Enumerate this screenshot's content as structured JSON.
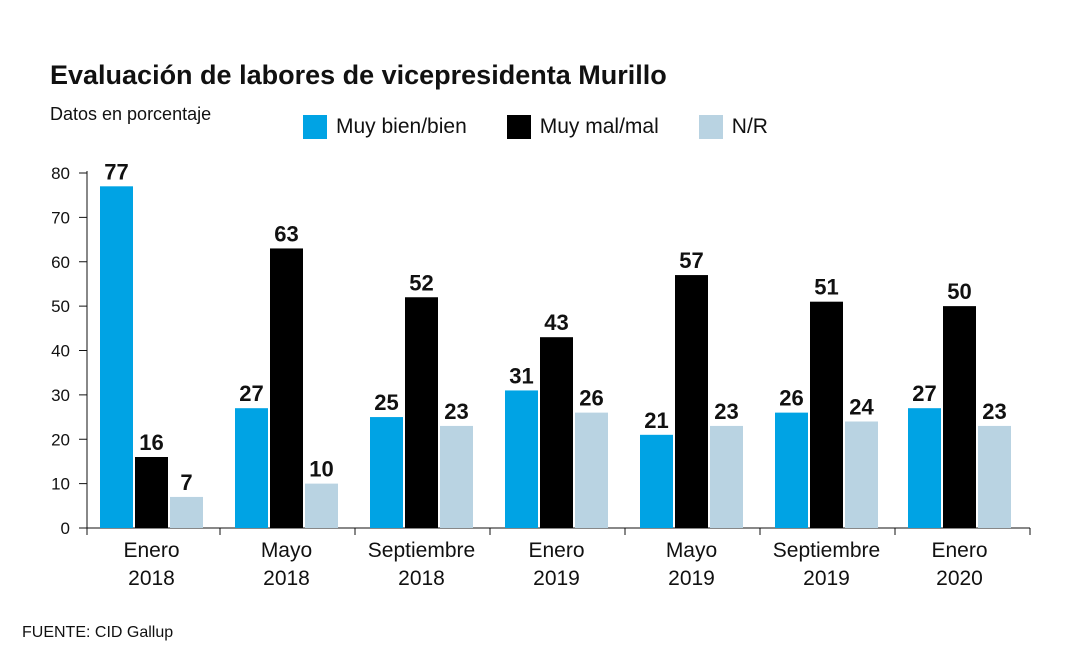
{
  "title": "Evaluación de labores de vicepresidenta Murillo",
  "subtitle": "Datos en porcentaje",
  "source": "FUENTE: CID Gallup",
  "colors": {
    "muy_bien": "#00a3e4",
    "muy_mal": "#000000",
    "nr": "#b9d3e2"
  },
  "chart_data": {
    "type": "bar",
    "title": "Evaluación de labores de vicepresidenta Murillo",
    "subtitle": "Datos en porcentaje",
    "categories": [
      [
        "Enero",
        "2018"
      ],
      [
        "Mayo",
        "2018"
      ],
      [
        "Septiembre",
        "2018"
      ],
      [
        "Enero",
        "2019"
      ],
      [
        "Mayo",
        "2019"
      ],
      [
        "Septiembre",
        "2019"
      ],
      [
        "Enero",
        "2020"
      ]
    ],
    "series": [
      {
        "name": "Muy bien/bien",
        "color": "#00a3e4",
        "values": [
          77,
          27,
          25,
          31,
          21,
          26,
          27
        ]
      },
      {
        "name": "Muy mal/mal",
        "color": "#000000",
        "values": [
          16,
          63,
          52,
          43,
          57,
          51,
          50
        ]
      },
      {
        "name": "N/R",
        "color": "#b9d3e2",
        "values": [
          7,
          10,
          23,
          26,
          23,
          24,
          23
        ]
      }
    ],
    "ylim": [
      0,
      80
    ],
    "yticks": [
      0,
      10,
      20,
      30,
      40,
      50,
      60,
      70,
      80
    ],
    "grid": false,
    "legend_position": "top"
  }
}
